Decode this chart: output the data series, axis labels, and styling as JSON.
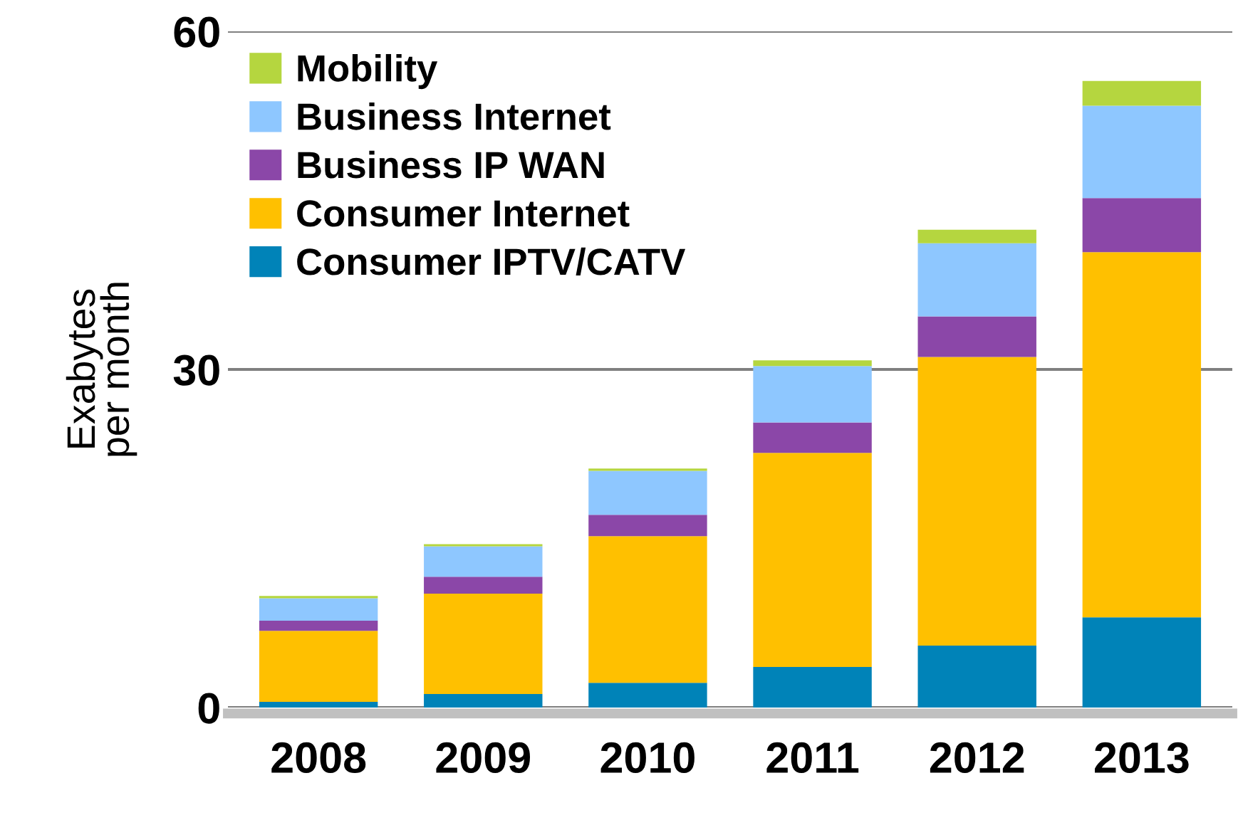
{
  "chart_data": {
    "type": "bar",
    "stacked": true,
    "ylabel": "Exabytes\nper month",
    "categories": [
      "2008",
      "2009",
      "2010",
      "2011",
      "2012",
      "2013"
    ],
    "series": [
      {
        "name": "Consumer IPTV/CATV",
        "color": "#0083b8",
        "values": [
          0.5,
          1.2,
          2.2,
          3.6,
          5.5,
          8.0
        ]
      },
      {
        "name": "Consumer Internet",
        "color": "#ffc000",
        "values": [
          6.3,
          8.9,
          13.0,
          19.0,
          25.6,
          32.4
        ]
      },
      {
        "name": "Business IP WAN",
        "color": "#8b47a8",
        "values": [
          0.9,
          1.5,
          1.9,
          2.7,
          3.6,
          4.8
        ]
      },
      {
        "name": "Business Internet",
        "color": "#8ec7ff",
        "values": [
          2.0,
          2.7,
          3.9,
          5.0,
          6.5,
          8.2
        ]
      },
      {
        "name": "Mobility",
        "color": "#b5d63f",
        "values": [
          0.2,
          0.2,
          0.2,
          0.5,
          1.2,
          2.2
        ]
      }
    ],
    "ylim": [
      0,
      60
    ],
    "yticks": [
      0,
      30,
      60
    ],
    "grid": "y",
    "legend": "top left"
  }
}
